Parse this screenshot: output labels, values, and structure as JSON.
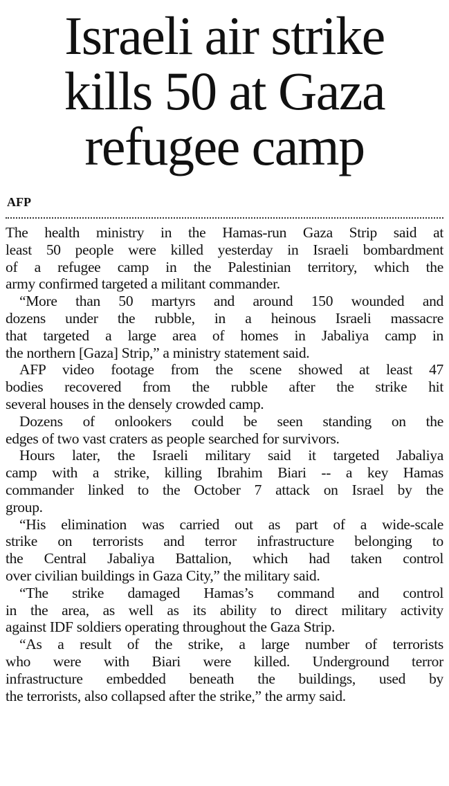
{
  "headline": [
    "Israeli air strike",
    "kills 50 at Gaza",
    "refugee camp"
  ],
  "byline": "AFP",
  "paragraphs": [
    [
      "The health ministry in the Hamas-run Gaza Strip said at",
      "least 50 people were killed yesterday in Israeli bombardment",
      "of a refugee camp in the Palestinian territory, which the",
      "army confirmed targeted a militant commander."
    ],
    [
      "“More than 50 martyrs and around 150 wounded and",
      "dozens under the rubble, in a heinous Israeli massacre",
      "that targeted a large area of homes in Jabaliya camp in",
      "the northern [Gaza] Strip,” a ministry statement said."
    ],
    [
      "AFP video footage from the scene showed at least 47",
      "bodies recovered from the rubble after the strike hit",
      "several houses in the densely crowded camp."
    ],
    [
      "Dozens of onlookers could be seen standing on the",
      "edges of two vast craters as people searched for survivors."
    ],
    [
      "Hours later, the Israeli military said it targeted Jabaliya",
      "camp with a strike, killing Ibrahim Biari -- a key Hamas",
      "commander linked to the October 7 attack on Israel by the",
      "group."
    ],
    [
      "“His elimination was carried out as part of a wide-scale",
      "strike on terrorists and terror infrastructure belonging to",
      "the Central Jabaliya Battalion, which had taken control",
      "over civilian buildings in Gaza City,” the military said."
    ],
    [
      "“The strike damaged Hamas’s command and control",
      "in the area, as well as its ability to direct military activity",
      "against IDF soldiers operating throughout the Gaza Strip."
    ],
    [
      "“As a result of the strike, a large number of terrorists",
      "who were with Biari were killed. Underground terror",
      "infrastructure embedded beneath the buildings, used by",
      "the terrorists, also collapsed after the strike,” the army said."
    ]
  ]
}
